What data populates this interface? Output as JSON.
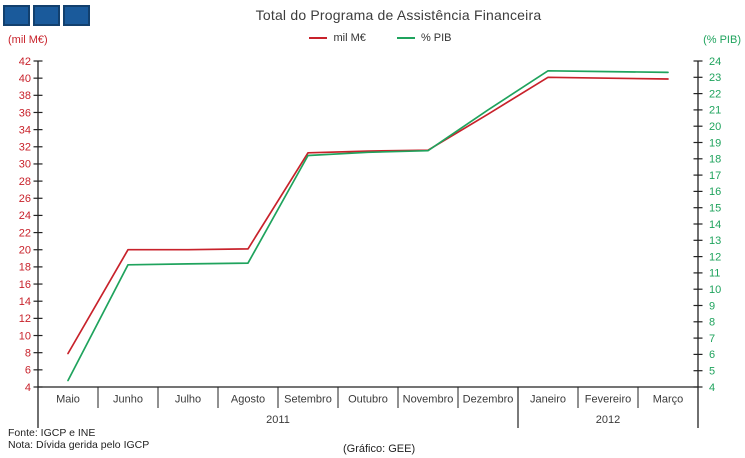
{
  "header": {
    "title": "Total do Programa de Assistência Financeira",
    "logo": {
      "square_color": "#1A5A9B",
      "square_border_color": "#12406E"
    }
  },
  "footer": {
    "fonte": "Fonte: IGCP e INE",
    "nota": "Nota: Dívida gerida pelo IGCP",
    "grafico": "(Gráfico: GEE)"
  },
  "chart_data": {
    "type": "line",
    "title": "Total do Programa de Assistência Financeira",
    "grid": false,
    "legend_position": "top",
    "categories": [
      "Maio",
      "Junho",
      "Julho",
      "Agosto",
      "Setembro",
      "Outubro",
      "Novembro",
      "Dezembro",
      "Janeiro",
      "Fevereiro",
      "Março"
    ],
    "year_groups": [
      {
        "label": "2011",
        "months": 8
      },
      {
        "label": "2012",
        "months": 3
      }
    ],
    "left_axis": {
      "label": "(mil M€)",
      "min": 4,
      "max": 42,
      "step": 2,
      "color": "#C8222B"
    },
    "right_axis": {
      "label": "(% PIB)",
      "min": 4,
      "max": 24,
      "step": 1,
      "color": "#1FA35D"
    },
    "series": [
      {
        "name": "mil M€",
        "axis": "left",
        "color": "#C8222B",
        "values": [
          7.9,
          20.0,
          20.0,
          20.1,
          31.3,
          31.5,
          31.6,
          35.8,
          40.1,
          40.0,
          39.9
        ]
      },
      {
        "name": "% PIB",
        "axis": "right",
        "color": "#1FA35D",
        "values": [
          4.4,
          11.5,
          11.55,
          11.6,
          18.2,
          18.4,
          18.5,
          21.0,
          23.4,
          23.35,
          23.3
        ]
      }
    ]
  }
}
